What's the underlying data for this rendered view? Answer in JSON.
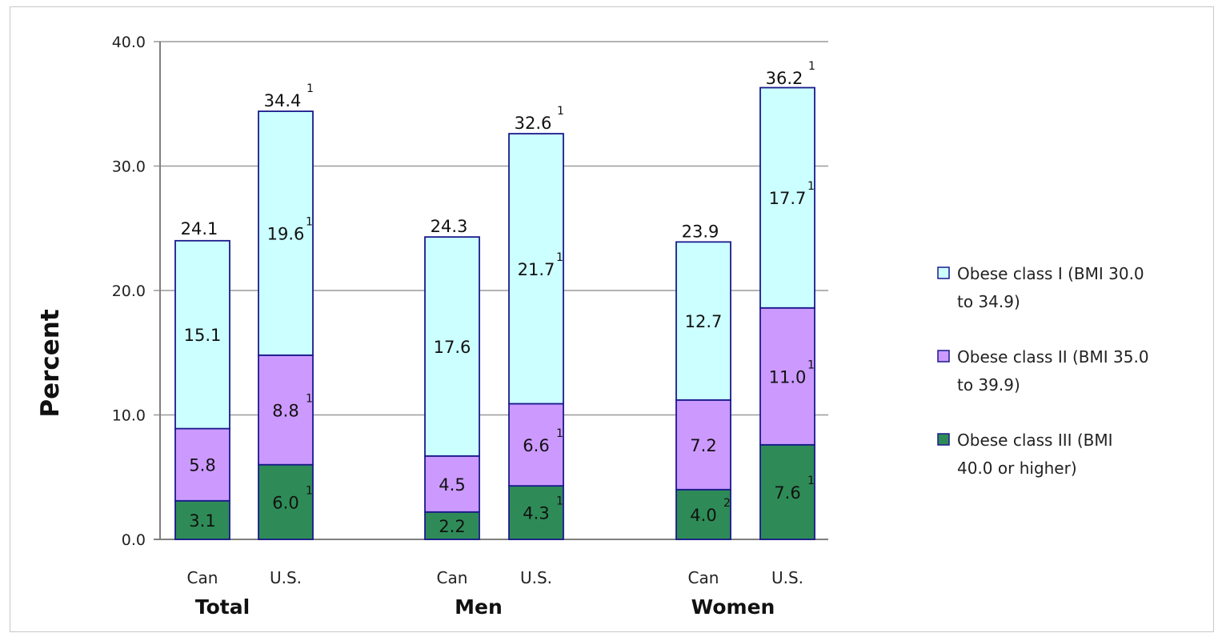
{
  "chart_data": {
    "type": "bar",
    "stacked": true,
    "ylabel": "Percent",
    "ylim": [
      0,
      40
    ],
    "y_ticks": [
      "0.0",
      "10.0",
      "20.0",
      "30.0",
      "40.0"
    ],
    "grid": true,
    "legend_position": "right",
    "groups": [
      {
        "label": "Total",
        "categories": [
          "Can",
          "U.S."
        ]
      },
      {
        "label": "Men",
        "categories": [
          "Can",
          "U.S."
        ]
      },
      {
        "label": "Women",
        "categories": [
          "Can",
          "U.S."
        ]
      }
    ],
    "categories": [
      "Can",
      "U.S.",
      "Can",
      "U.S.",
      "Can",
      "U.S."
    ],
    "series": [
      {
        "name": "Obese class III (BMI 40.0 or higher)",
        "legend_lines": [
          "Obese class III (BMI",
          "40.0 or higher)"
        ],
        "color": "#2e8b57",
        "values": [
          3.1,
          6.0,
          2.2,
          4.3,
          4.0,
          7.6
        ],
        "labels": [
          "3.1",
          "6.0",
          "2.2",
          "4.3",
          "4.0",
          "7.6"
        ],
        "notes": [
          "",
          "1",
          "",
          "1",
          "2",
          "1"
        ]
      },
      {
        "name": "Obese class II (BMI 35.0 to 39.9)",
        "legend_lines": [
          "Obese class II (BMI 35.0",
          "to 39.9)"
        ],
        "color": "#cc99ff",
        "values": [
          5.8,
          8.8,
          4.5,
          6.6,
          7.2,
          11.0
        ],
        "labels": [
          "5.8",
          "8.8",
          "4.5",
          "6.6",
          "7.2",
          "11.0"
        ],
        "notes": [
          "",
          "1",
          "",
          "1",
          "",
          "1"
        ]
      },
      {
        "name": "Obese class I (BMI 30.0 to 34.9)",
        "legend_lines": [
          "Obese class I (BMI 30.0",
          "to 34.9)"
        ],
        "color": "#ccffff",
        "values": [
          15.1,
          19.6,
          17.6,
          21.7,
          12.7,
          17.7
        ],
        "labels": [
          "15.1",
          "19.6",
          "17.6",
          "21.7",
          "12.7",
          "17.7"
        ],
        "notes": [
          "",
          "1",
          "",
          "1",
          "",
          "1"
        ]
      }
    ],
    "totals": [
      24.1,
      34.4,
      24.3,
      32.6,
      23.9,
      36.2
    ],
    "total_labels": [
      "24.1",
      "34.4",
      "24.3",
      "32.6",
      "23.9",
      "36.2"
    ],
    "total_notes": [
      "",
      "1",
      "",
      "1",
      "",
      "1"
    ]
  }
}
